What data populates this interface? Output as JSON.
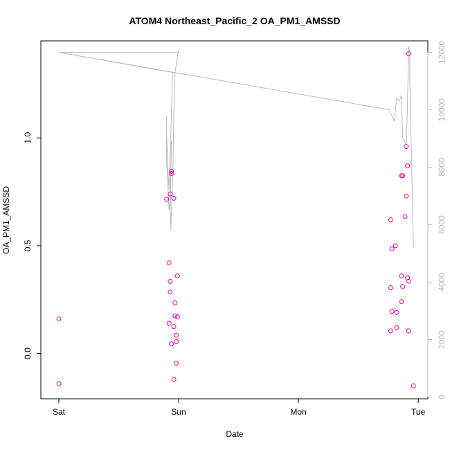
{
  "chart_data": {
    "type": "scatter",
    "title": "ATOM4 Northeast_Pacific_2 OA_PM1_AMSSD",
    "xlabel": "Date",
    "ylabel": "OA_PM1_AMSSD",
    "x_ticks": [
      {
        "value": 0,
        "label": "Sat"
      },
      {
        "value": 1,
        "label": "Sun"
      },
      {
        "value": 2,
        "label": "Mon"
      },
      {
        "value": 3,
        "label": "Tue"
      }
    ],
    "xlim": [
      -0.15,
      3.08
    ],
    "ylim": [
      -0.21,
      1.45
    ],
    "y_ticks": [
      0.0,
      0.5,
      1.0
    ],
    "y_tick_labels": [
      "0.0",
      "0.5",
      "1.0"
    ],
    "y2lim": [
      -60,
      12400
    ],
    "y2_ticks": [
      0,
      2000,
      4000,
      6000,
      8000,
      10000,
      12000
    ],
    "y2_tick_labels": [
      "0",
      "2000",
      "4000",
      "6000",
      "8000",
      "10000",
      "12000"
    ],
    "grid": false,
    "point_color": "#ee00aa",
    "line_color": "#b8b8b8",
    "points": [
      {
        "x": 0.0,
        "y": 0.16
      },
      {
        "x": 0.0,
        "y": -0.14
      },
      {
        "x": 0.9,
        "y": 0.715
      },
      {
        "x": 0.93,
        "y": 0.74
      },
      {
        "x": 0.94,
        "y": 0.835
      },
      {
        "x": 0.94,
        "y": 0.845
      },
      {
        "x": 0.96,
        "y": 0.72
      },
      {
        "x": 0.92,
        "y": 0.42
      },
      {
        "x": 0.93,
        "y": 0.335
      },
      {
        "x": 0.93,
        "y": 0.285
      },
      {
        "x": 0.99,
        "y": 0.36
      },
      {
        "x": 0.97,
        "y": 0.235
      },
      {
        "x": 0.97,
        "y": 0.175
      },
      {
        "x": 0.99,
        "y": 0.17
      },
      {
        "x": 0.92,
        "y": 0.14
      },
      {
        "x": 0.96,
        "y": 0.125
      },
      {
        "x": 0.98,
        "y": 0.085
      },
      {
        "x": 0.98,
        "y": 0.055
      },
      {
        "x": 0.94,
        "y": 0.045
      },
      {
        "x": 0.98,
        "y": -0.045
      },
      {
        "x": 0.96,
        "y": -0.12
      },
      {
        "x": 2.77,
        "y": 0.62
      },
      {
        "x": 2.78,
        "y": 0.485
      },
      {
        "x": 2.81,
        "y": 0.5
      },
      {
        "x": 2.77,
        "y": 0.305
      },
      {
        "x": 2.78,
        "y": 0.195
      },
      {
        "x": 2.82,
        "y": 0.19
      },
      {
        "x": 2.77,
        "y": 0.105
      },
      {
        "x": 2.82,
        "y": 0.12
      },
      {
        "x": 2.86,
        "y": 0.825
      },
      {
        "x": 2.87,
        "y": 0.825
      },
      {
        "x": 2.86,
        "y": 0.36
      },
      {
        "x": 2.87,
        "y": 0.31
      },
      {
        "x": 2.86,
        "y": 0.24
      },
      {
        "x": 2.9,
        "y": 0.96
      },
      {
        "x": 2.91,
        "y": 0.87
      },
      {
        "x": 2.9,
        "y": 0.73
      },
      {
        "x": 2.89,
        "y": 0.635
      },
      {
        "x": 2.91,
        "y": 0.35
      },
      {
        "x": 2.92,
        "y": 0.335
      },
      {
        "x": 2.92,
        "y": 0.105
      },
      {
        "x": 2.92,
        "y": 1.39
      },
      {
        "x": 2.96,
        "y": -0.15
      }
    ],
    "line_series": [
      {
        "x": 0.0,
        "y": 12000
      },
      {
        "x": 1.0,
        "y": 12000
      },
      {
        "x": 1.0,
        "y": 12100
      },
      {
        "x": 0.97,
        "y": 11300
      },
      {
        "x": 0.96,
        "y": 9800
      },
      {
        "x": 0.95,
        "y": 7500
      },
      {
        "x": 0.94,
        "y": 6500
      },
      {
        "x": 0.935,
        "y": 5800
      },
      {
        "x": 0.93,
        "y": 6500
      },
      {
        "x": 0.94,
        "y": 8900
      },
      {
        "x": 0.93,
        "y": 7000
      },
      {
        "x": 0.92,
        "y": 6500
      },
      {
        "x": 0.9,
        "y": 8200
      },
      {
        "x": 0.9,
        "y": 9500
      },
      {
        "x": 0.9,
        "y": 9800
      },
      {
        "x": 0.9,
        "y": 9200
      },
      {
        "x": 0.91,
        "y": 8000
      },
      {
        "x": 0.92,
        "y": 7200
      },
      {
        "x": 0.95,
        "y": 11300
      },
      {
        "x": 0.0,
        "y": 12000
      },
      {
        "x": 2.76,
        "y": 10000
      },
      {
        "x": 2.8,
        "y": 9600
      },
      {
        "x": 2.82,
        "y": 10400
      },
      {
        "x": 2.84,
        "y": 10300
      },
      {
        "x": 2.86,
        "y": 10500
      },
      {
        "x": 2.87,
        "y": 9000
      },
      {
        "x": 2.9,
        "y": 8800
      },
      {
        "x": 2.91,
        "y": 10200
      },
      {
        "x": 2.92,
        "y": 12200
      },
      {
        "x": 2.93,
        "y": 12000
      },
      {
        "x": 2.93,
        "y": 11000
      },
      {
        "x": 2.94,
        "y": 9000
      },
      {
        "x": 2.96,
        "y": 5200
      }
    ]
  }
}
